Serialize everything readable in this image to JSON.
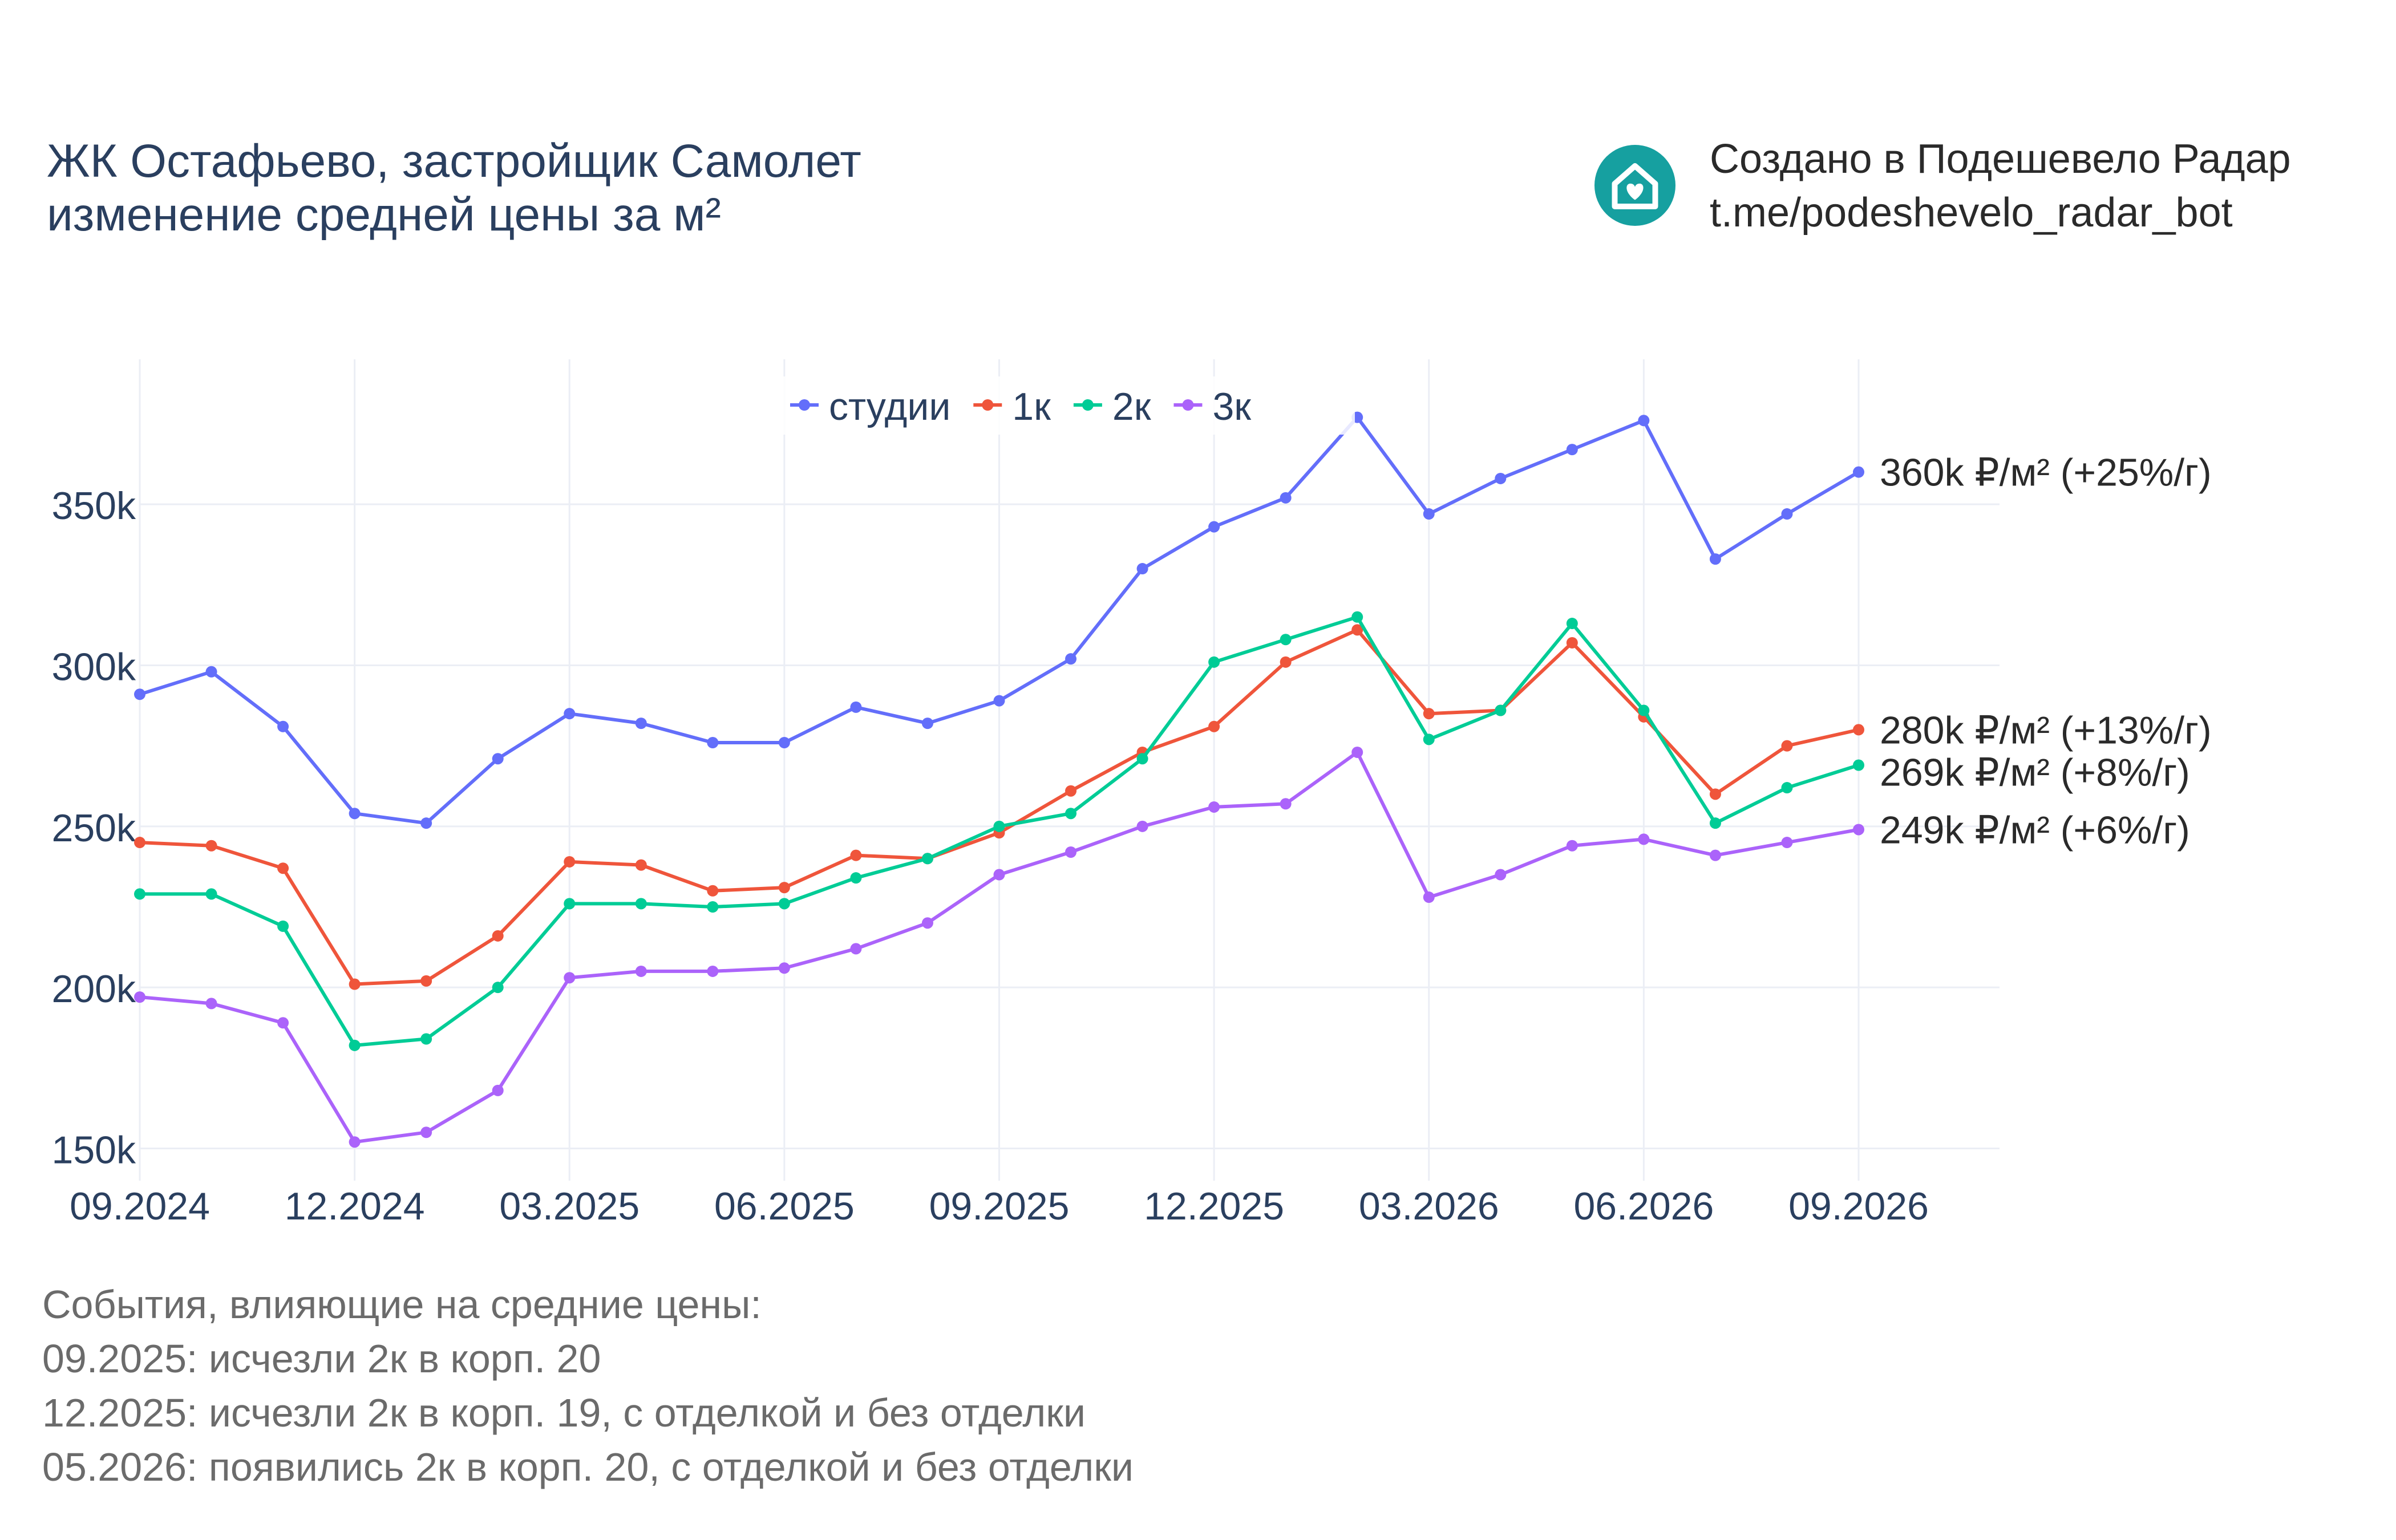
{
  "title": {
    "line1": "ЖК Остафьево, застройщик Самолет",
    "line2": "изменение средней цены за м²"
  },
  "brand": {
    "line1": "Создано в Подешевело Радар",
    "line2": "t.me/podeshevelo_radar_bot",
    "logo_icon": "house-heart-icon",
    "logo_color": "#16a0a0"
  },
  "events": {
    "heading": "События, влияющие на средние цены:",
    "items": [
      "09.2025: исчезли 2к в корп. 20",
      "12.2025: исчезли 2к в корп. 19, с отделкой и без отделки",
      "05.2026: появились 2к в корп. 20, с отделкой и без отделки"
    ]
  },
  "chart_data": {
    "type": "line",
    "x": [
      "2024-09",
      "2024-10",
      "2024-11",
      "2024-12",
      "2025-01",
      "2025-02",
      "2025-03",
      "2025-04",
      "2025-05",
      "2025-06",
      "2025-07",
      "2025-08",
      "2025-09",
      "2025-10",
      "2025-11",
      "2025-12",
      "2026-01",
      "2026-02",
      "2026-03",
      "2026-04",
      "2026-05",
      "2026-06",
      "2026-07",
      "2026-08",
      "2026-09"
    ],
    "x_ticks": [
      "09.2024",
      "12.2024",
      "03.2025",
      "06.2025",
      "09.2025",
      "12.2025",
      "03.2026",
      "06.2026",
      "09.2026"
    ],
    "y_ticks": [
      "150k",
      "200k",
      "250k",
      "300k",
      "350k"
    ],
    "ylim": [
      140000,
      395000
    ],
    "grid": true,
    "legend_position": "top-center",
    "series": [
      {
        "name": "студии",
        "color": "#636efa",
        "values": [
          291000,
          298000,
          281000,
          254000,
          251000,
          271000,
          285000,
          282000,
          276000,
          276000,
          287000,
          282000,
          289000,
          302000,
          330000,
          343000,
          352000,
          377000,
          347000,
          358000,
          367000,
          376000,
          333000,
          347000,
          360000
        ],
        "end_label": "360k ₽/м² (+25%/г)"
      },
      {
        "name": "1к",
        "color": "#ef553b",
        "values": [
          245000,
          244000,
          237000,
          201000,
          202000,
          216000,
          239000,
          238000,
          230000,
          231000,
          241000,
          240000,
          248000,
          261000,
          273000,
          281000,
          301000,
          311000,
          285000,
          286000,
          307000,
          284000,
          260000,
          275000,
          280000
        ],
        "end_label": "280k ₽/м² (+13%/г)"
      },
      {
        "name": "2к",
        "color": "#00cc96",
        "values": [
          229000,
          229000,
          219000,
          182000,
          184000,
          200000,
          226000,
          226000,
          225000,
          226000,
          234000,
          240000,
          250000,
          254000,
          271000,
          301000,
          308000,
          315000,
          277000,
          286000,
          313000,
          286000,
          251000,
          262000,
          269000
        ],
        "end_label": "269k ₽/м² (+8%/г)"
      },
      {
        "name": "3к",
        "color": "#ab63fa",
        "values": [
          197000,
          195000,
          189000,
          152000,
          155000,
          168000,
          203000,
          205000,
          205000,
          206000,
          212000,
          220000,
          235000,
          242000,
          250000,
          256000,
          257000,
          273000,
          228000,
          235000,
          244000,
          246000,
          241000,
          245000,
          249000
        ],
        "end_label": "249k ₽/м² (+6%/г)"
      }
    ]
  }
}
